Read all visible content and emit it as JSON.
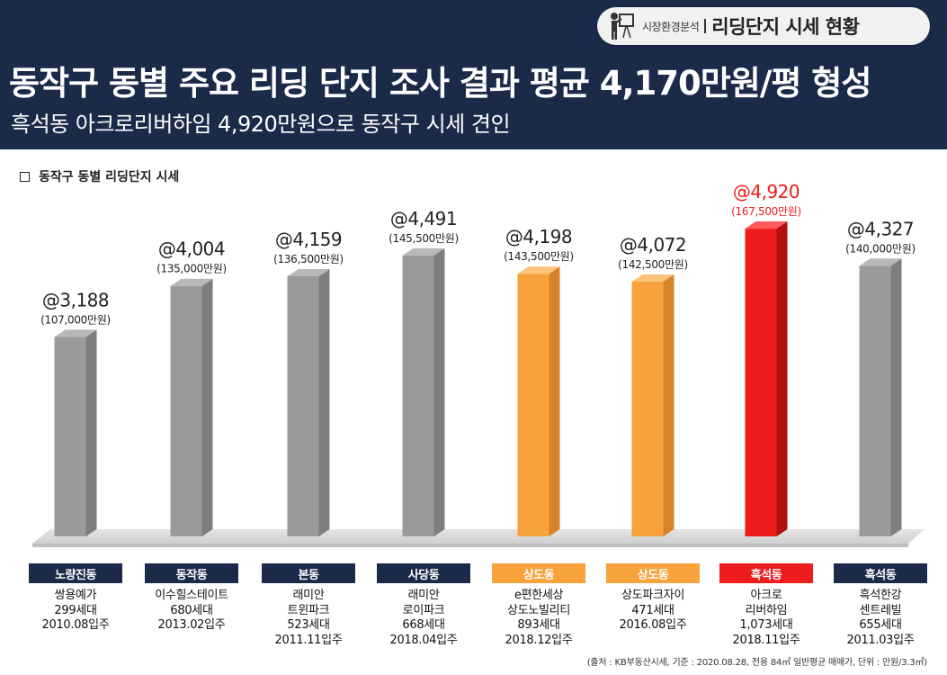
{
  "header": {
    "badge_small": "시장환경분석",
    "badge_title": "리딩단지 시세 현황",
    "headline": "동작구 동별 주요 리딩 단지 조사 결과 평균 4,170만원/평 형성",
    "subline": "흑석동 아크로리버하임 4,920만원으로 동작구 시세 견인"
  },
  "section_title": "동작구 동별 리딩단지 시세",
  "colors": {
    "header_bg": "#1b2a49",
    "gray_bar": "#9a9a9a",
    "orange_bar": "#f7a23a",
    "red_bar": "#ee1c1c",
    "navy_label": "#1b2a49",
    "orange_label": "#f7a23a",
    "red_label": "#ee1c1c"
  },
  "chart_data": {
    "type": "bar",
    "title": "동작구 동별 리딩단지 시세",
    "unit_note": "단위 : 만원/3.3㎡",
    "categories": [
      "노량진동",
      "동작동",
      "본동",
      "사당동",
      "상도동",
      "상도동",
      "흑석동",
      "흑석동"
    ],
    "values": [
      3188,
      4004,
      4159,
      4491,
      4198,
      4072,
      4920,
      4327
    ],
    "value_labels": [
      "@3,188",
      "@4,004",
      "@4,159",
      "@4,491",
      "@4,198",
      "@4,072",
      "@4,920",
      "@4,327"
    ],
    "price_labels": [
      "(107,000만원)",
      "(135,000만원)",
      "(136,500만원)",
      "(145,500만원)",
      "(143,500만원)",
      "(142,500만원)",
      "(167,500만원)",
      "(140,000만원)"
    ],
    "bar_colors": [
      "gray",
      "gray",
      "gray",
      "gray",
      "orange",
      "orange",
      "red",
      "gray"
    ],
    "ylim": [
      0,
      5000
    ]
  },
  "complexes": [
    {
      "lines": [
        "쌍용예가",
        "299세대",
        "2010.08입주"
      ]
    },
    {
      "lines": [
        "이수힐스테이트",
        "680세대",
        "2013.02입주"
      ]
    },
    {
      "lines": [
        "래미안",
        "트윈파크",
        "523세대",
        "2011.11입주"
      ]
    },
    {
      "lines": [
        "래미안",
        "로이파크",
        "668세대",
        "2018.04입주"
      ]
    },
    {
      "lines": [
        "e편한세상",
        "상도노빌리티",
        "893세대",
        "2018.12입주"
      ]
    },
    {
      "lines": [
        "상도파크자이",
        "471세대",
        "2016.08입주"
      ]
    },
    {
      "lines": [
        "아크로",
        "리버하임",
        "1,073세대",
        "2018.11입주"
      ]
    },
    {
      "lines": [
        "흑석한강",
        "센트레빌",
        "655세대",
        "2011.03입주"
      ]
    }
  ],
  "source": "(출처 : KB부동산시세, 기준 : 2020.08.28, 전용 84㎡ 일반평균 매매가, 단위 : 만원/3.3㎡)"
}
